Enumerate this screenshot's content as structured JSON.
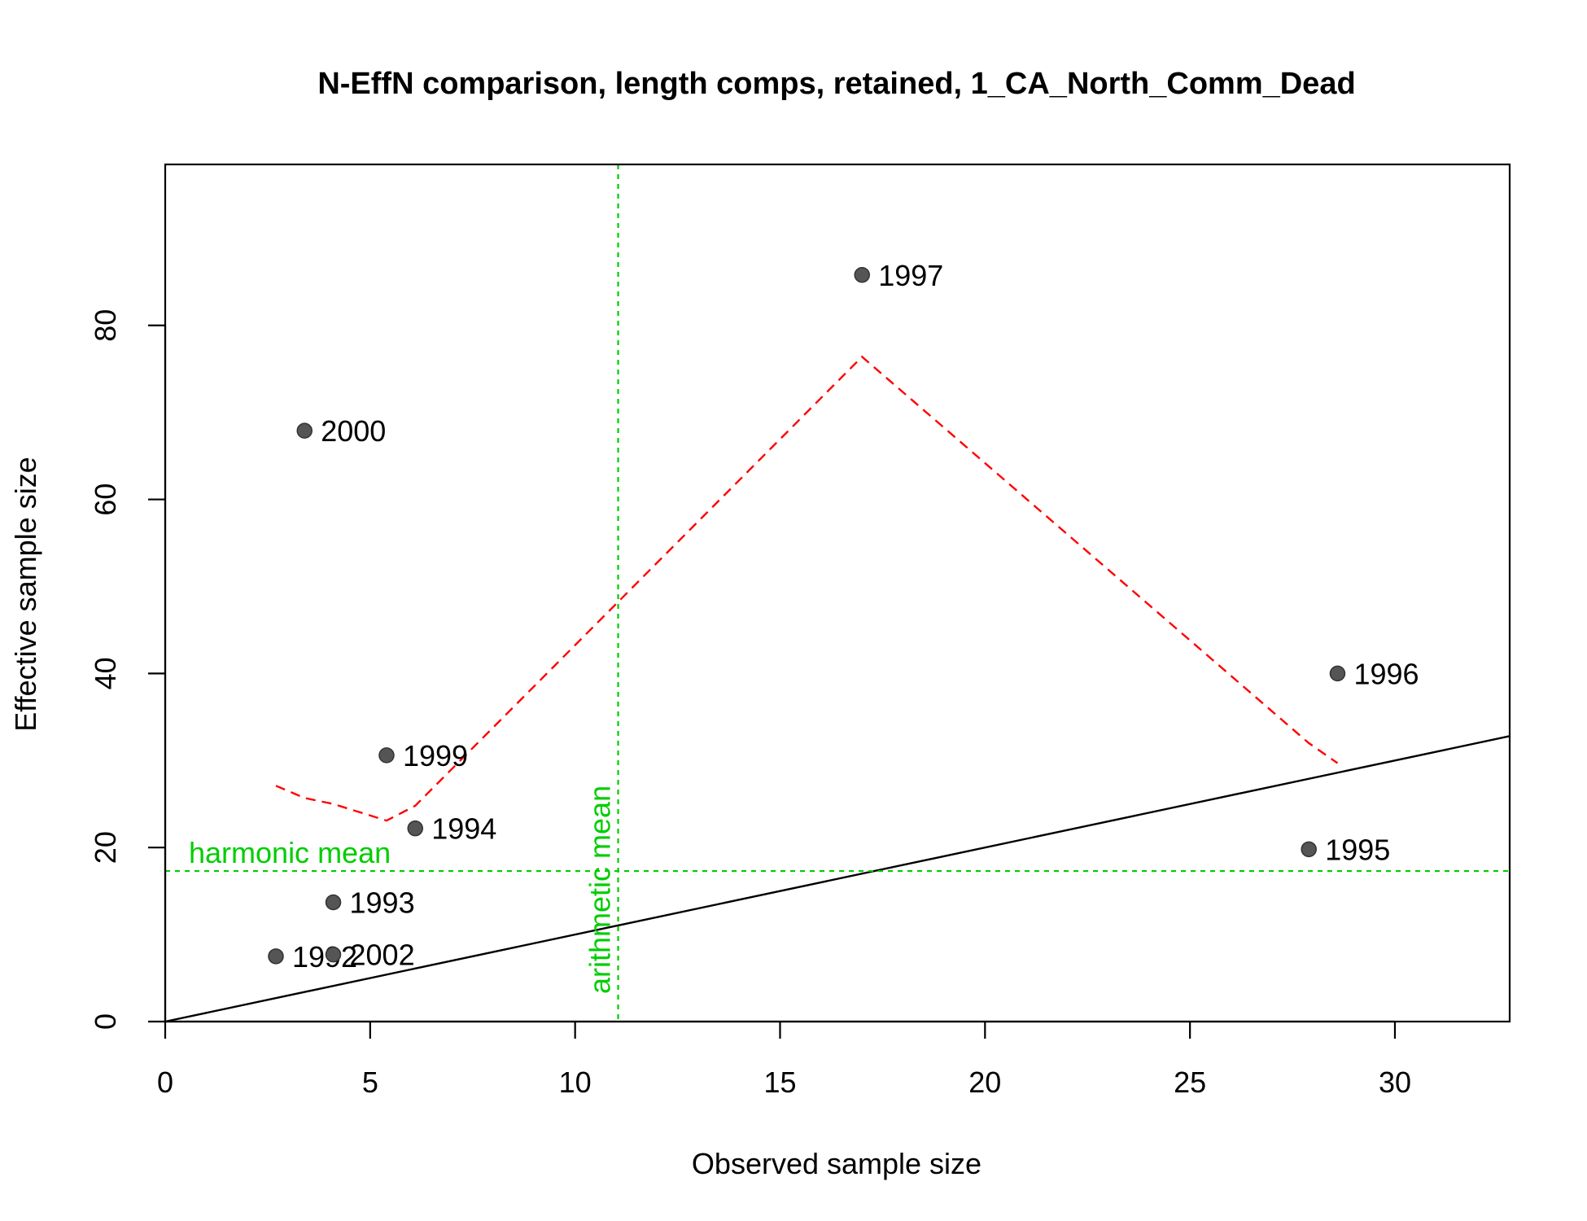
{
  "chart_data": {
    "type": "scatter",
    "title": "N-EffN comparison, length comps, retained, 1_CA_North_Comm_Dead",
    "xlabel": "Observed sample size",
    "ylabel": "Effective sample size",
    "xlim": [
      0,
      32.8
    ],
    "ylim": [
      0,
      98.5
    ],
    "x_ticks": [
      0,
      5,
      10,
      15,
      20,
      25,
      30
    ],
    "y_ticks": [
      0,
      20,
      40,
      60,
      80
    ],
    "points": [
      {
        "label": "1992",
        "x": 2.7,
        "y": 7.5
      },
      {
        "label": "1993",
        "x": 4.1,
        "y": 13.7
      },
      {
        "label": "1994",
        "x": 6.1,
        "y": 22.2
      },
      {
        "label": "1995",
        "x": 27.9,
        "y": 19.8
      },
      {
        "label": "1996",
        "x": 28.6,
        "y": 40.0
      },
      {
        "label": "1997",
        "x": 17.0,
        "y": 85.8
      },
      {
        "label": "1999",
        "x": 5.4,
        "y": 30.6
      },
      {
        "label": "2000",
        "x": 3.4,
        "y": 67.9
      },
      {
        "label": "2002",
        "x": 4.1,
        "y": 7.7
      }
    ],
    "smoother": [
      {
        "x": 2.7,
        "y": 27.1
      },
      {
        "x": 3.4,
        "y": 25.7
      },
      {
        "x": 4.1,
        "y": 25.0
      },
      {
        "x": 5.4,
        "y": 23.1
      },
      {
        "x": 6.1,
        "y": 24.8
      },
      {
        "x": 17.0,
        "y": 76.4
      },
      {
        "x": 27.9,
        "y": 32.0
      },
      {
        "x": 28.6,
        "y": 29.7
      }
    ],
    "reference_lines": {
      "one_to_one": {
        "slope": 1,
        "intercept": 0,
        "color": "#000000"
      },
      "harmonic_mean": {
        "y": 17.3,
        "label": "harmonic mean",
        "color": "#00CD00"
      },
      "arithmetic_mean": {
        "x": 11.05,
        "label": "arithmetic mean",
        "color": "#00CD00"
      }
    },
    "colors": {
      "points": "#555555",
      "smoother": "#FF0000",
      "mean_lines": "#00CD00"
    },
    "grid": false
  }
}
